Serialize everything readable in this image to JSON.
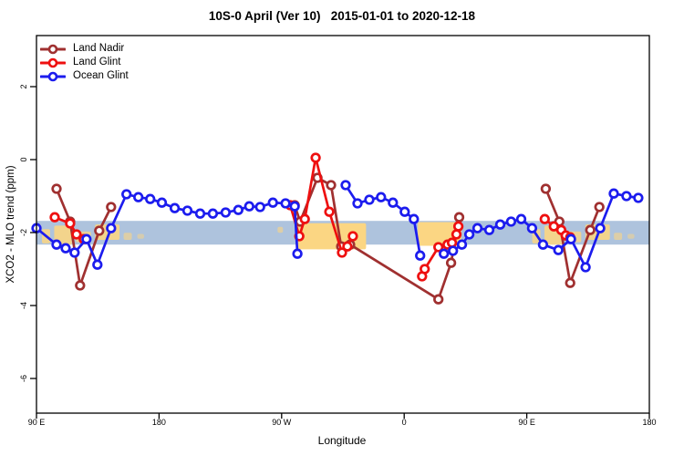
{
  "title": "10S-0 April (Ver 10)   2015-01-01 to 2020-12-18",
  "legend": {
    "items": [
      {
        "label": "Land Nadir",
        "color": "#a03030"
      },
      {
        "label": "Land Glint",
        "color": "#ee1010"
      },
      {
        "label": "Ocean Glint",
        "color": "#1c1cee"
      }
    ]
  },
  "chart_data": {
    "type": "line",
    "title": "10S-0 April (Ver 10)   2015-01-01 to 2020-12-18",
    "xlabel": "Longitude",
    "ylabel": "XCO2 - MLO trend (ppm)",
    "x_axis": {
      "range": [
        0,
        450
      ],
      "note": "longitude axis wraps eastward: 90E -> 180 -> 90W -> 0 -> 90E -> 180; positions are degrees east of 90E",
      "ticks": [
        0,
        90,
        180,
        270,
        360,
        450
      ],
      "tick_labels": [
        "90 E",
        "180",
        "90 W",
        "0",
        "90 E",
        "180"
      ]
    },
    "y_axis": {
      "range": [
        -6.95,
        3.4
      ],
      "ticks": [
        2,
        0,
        -2,
        -4,
        -6
      ],
      "tick_labels": [
        "2",
        "0",
        "-2",
        "-4",
        "-6"
      ]
    },
    "grid": "off",
    "legend_position": "top-left inside",
    "reference_band": {
      "y_top": -1.68,
      "y_bottom": -2.33,
      "ocean_color": "#aec3dd",
      "land_color": "#fbd683",
      "description": "horizontal strip at -2 ppm showing 10S-0 latitude world map: blue = ocean, sandy = land"
    },
    "land_patches": [
      {
        "x1": 4,
        "x2": 10,
        "top": 0.35,
        "bottom": 0.95,
        "op": 0.85
      },
      {
        "x1": 13,
        "x2": 26,
        "top": 0.2,
        "bottom": 1.0,
        "op": 0.9
      },
      {
        "x1": 29,
        "x2": 40,
        "top": 0.45,
        "bottom": 0.9,
        "op": 0.8
      },
      {
        "x1": 43,
        "x2": 61,
        "top": 0.15,
        "bottom": 0.8,
        "op": 0.9
      },
      {
        "x1": 64,
        "x2": 70,
        "top": 0.5,
        "bottom": 0.8,
        "op": 0.6
      },
      {
        "x1": 74,
        "x2": 79,
        "top": 0.55,
        "bottom": 0.75,
        "op": 0.5
      },
      {
        "x1": 177,
        "x2": 181,
        "top": 0.25,
        "bottom": 0.5,
        "op": 0.6
      },
      {
        "x1": 192,
        "x2": 242,
        "top": 0.1,
        "bottom": 1.2,
        "op": 1.0
      },
      {
        "x1": 280,
        "x2": 312,
        "top": 0.05,
        "bottom": 1.05,
        "op": 1.0
      },
      {
        "x1": 364,
        "x2": 370,
        "top": 0.35,
        "bottom": 0.95,
        "op": 0.85
      },
      {
        "x1": 373,
        "x2": 386,
        "top": 0.2,
        "bottom": 1.0,
        "op": 0.9
      },
      {
        "x1": 389,
        "x2": 400,
        "top": 0.45,
        "bottom": 0.9,
        "op": 0.8
      },
      {
        "x1": 403,
        "x2": 421,
        "top": 0.15,
        "bottom": 0.8,
        "op": 0.9
      },
      {
        "x1": 424,
        "x2": 430,
        "top": 0.5,
        "bottom": 0.8,
        "op": 0.6
      },
      {
        "x1": 434,
        "x2": 439,
        "top": 0.55,
        "bottom": 0.75,
        "op": 0.5
      }
    ],
    "series": [
      {
        "name": "Land Nadir",
        "color": "#a03030",
        "segments": [
          [
            [
              14.7,
              -0.8
            ],
            [
              24.7,
              -1.7
            ],
            [
              32.0,
              -3.45
            ],
            [
              46.1,
              -1.95
            ],
            [
              54.8,
              -1.3
            ]
          ],
          [
            [
              189.6,
              -1.25
            ],
            [
              193.6,
              -1.7
            ],
            [
              206.3,
              -0.5
            ],
            [
              216.3,
              -0.7
            ],
            [
              223.7,
              -2.38
            ],
            [
              230.3,
              -2.33
            ],
            [
              295.1,
              -3.83
            ],
            [
              304.4,
              -2.83
            ],
            [
              310.4,
              -1.58
            ]
          ],
          [
            [
              373.9,
              -0.8
            ],
            [
              383.9,
              -1.7
            ],
            [
              391.9,
              -3.38
            ],
            [
              406.6,
              -1.93
            ],
            [
              413.3,
              -1.3
            ]
          ]
        ]
      },
      {
        "name": "Land Glint",
        "color": "#ee1010",
        "segments": [
          [
            [
              13.4,
              -1.58
            ],
            [
              24.7,
              -1.75
            ],
            [
              29.4,
              -2.05
            ],
            [
              34.7,
              -2.18
            ]
          ],
          [
            [
              186.3,
              -1.25
            ],
            [
              193.0,
              -2.1
            ],
            [
              197.0,
              -1.63
            ],
            [
              205.0,
              0.05
            ],
            [
              215.0,
              -1.43
            ],
            [
              224.3,
              -2.55
            ],
            [
              228.3,
              -2.38
            ],
            [
              232.3,
              -2.1
            ]
          ],
          [
            [
              283.1,
              -3.2
            ],
            [
              285.1,
              -3.0
            ],
            [
              295.1,
              -2.4
            ],
            [
              301.8,
              -2.33
            ],
            [
              305.1,
              -2.28
            ],
            [
              308.4,
              -2.05
            ],
            [
              309.8,
              -1.83
            ]
          ],
          [
            [
              373.2,
              -1.63
            ],
            [
              379.9,
              -1.83
            ],
            [
              385.3,
              -1.93
            ],
            [
              388.6,
              -2.08
            ],
            [
              391.9,
              -2.13
            ]
          ]
        ]
      },
      {
        "name": "Ocean Glint",
        "color": "#1c1cee",
        "segments": [
          [
            [
              0.0,
              -1.88
            ],
            [
              14.7,
              -2.33
            ],
            [
              21.4,
              -2.43
            ],
            [
              28.0,
              -2.55
            ],
            [
              36.7,
              -2.18
            ],
            [
              44.7,
              -2.88
            ],
            [
              54.8,
              -1.88
            ],
            [
              66.1,
              -0.95
            ],
            [
              74.8,
              -1.03
            ],
            [
              83.5,
              -1.08
            ],
            [
              92.1,
              -1.18
            ],
            [
              101.5,
              -1.33
            ],
            [
              110.8,
              -1.4
            ],
            [
              120.2,
              -1.48
            ],
            [
              129.5,
              -1.48
            ],
            [
              138.9,
              -1.45
            ],
            [
              148.2,
              -1.38
            ],
            [
              156.2,
              -1.28
            ],
            [
              164.2,
              -1.3
            ],
            [
              173.6,
              -1.18
            ],
            [
              182.9,
              -1.2
            ],
            [
              189.6,
              -1.28
            ],
            [
              191.6,
              -2.58
            ]
          ],
          [
            [
              227.0,
              -0.7
            ],
            [
              235.7,
              -1.2
            ],
            [
              244.4,
              -1.1
            ],
            [
              253.0,
              -1.03
            ],
            [
              261.7,
              -1.18
            ],
            [
              270.4,
              -1.43
            ],
            [
              277.1,
              -1.63
            ],
            [
              281.7,
              -2.63
            ]
          ],
          [
            [
              299.1,
              -2.58
            ],
            [
              305.8,
              -2.5
            ],
            [
              312.4,
              -2.33
            ],
            [
              317.8,
              -2.05
            ],
            [
              323.8,
              -1.88
            ],
            [
              332.5,
              -1.93
            ],
            [
              340.5,
              -1.78
            ],
            [
              348.5,
              -1.7
            ],
            [
              355.9,
              -1.63
            ],
            [
              363.9,
              -1.88
            ],
            [
              371.9,
              -2.33
            ],
            [
              383.2,
              -2.48
            ],
            [
              392.5,
              -2.18
            ],
            [
              403.2,
              -2.95
            ],
            [
              413.9,
              -1.88
            ],
            [
              423.9,
              -0.93
            ],
            [
              433.2,
              -1.0
            ],
            [
              441.9,
              -1.05
            ]
          ]
        ]
      }
    ]
  }
}
